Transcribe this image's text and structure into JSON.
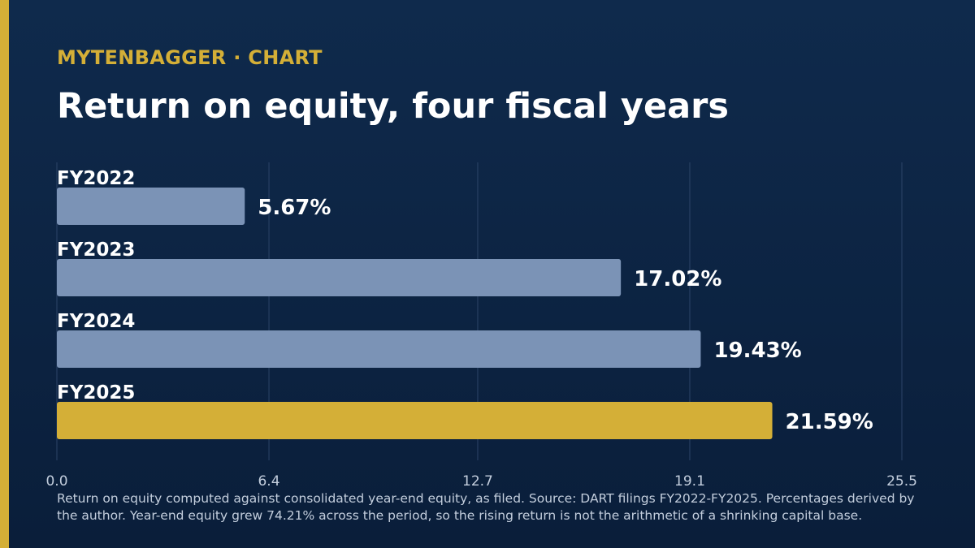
{
  "header": {
    "brand": "MYTENBAGGER",
    "brand_separator": "·",
    "brand_section": "CHART",
    "title": "Return on equity, four fiscal years"
  },
  "chart_data": {
    "type": "bar",
    "orientation": "horizontal",
    "title": "Return on equity, four fiscal years",
    "categories": [
      "FY2022",
      "FY2023",
      "FY2024",
      "FY2025"
    ],
    "values": [
      5.67,
      17.02,
      19.43,
      21.59
    ],
    "value_labels": [
      "5.67%",
      "17.02%",
      "19.43%",
      "21.59%"
    ],
    "x_ticks": [
      "0.0",
      "6.4",
      "12.7",
      "19.1",
      "25.5"
    ],
    "xlim": [
      0,
      25.5
    ],
    "grid": true,
    "highlight_index": 3,
    "colors": {
      "bar": "#7b93b6",
      "highlight": "#d4af37",
      "grid": "#2c4468",
      "tick": "#c3cedd"
    }
  },
  "footnote": "Return on equity computed against consolidated year-end equity, as filed. Source: DART filings FY2022-FY2025. Percentages derived by the author. Year-end equity grew 74.21% across the period, so the rising return is not the arithmetic of a shrinking capital base."
}
